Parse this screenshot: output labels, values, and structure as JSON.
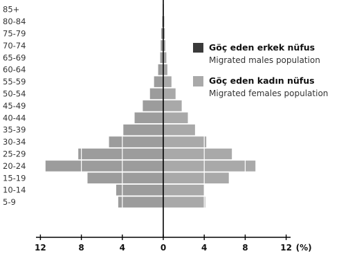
{
  "chart_data": {
    "type": "bar",
    "orientation": "horizontal",
    "categories": [
      "85+",
      "80-84",
      "75-79",
      "70-74",
      "65-69",
      "60-64",
      "55-59",
      "50-54",
      "45-49",
      "40-44",
      "35-39",
      "30-34",
      "25-29",
      "20-24",
      "15-19",
      "10-14",
      "5-9"
    ],
    "series": [
      {
        "name": "Göç eden erkek nüfus",
        "name_sub": "Migrated males population",
        "side": "left",
        "color": "#9c9c9c",
        "values": [
          0.05,
          0.1,
          0.2,
          0.25,
          0.3,
          0.5,
          0.9,
          1.3,
          2.0,
          2.8,
          3.9,
          5.3,
          8.3,
          11.5,
          7.4,
          4.6,
          4.4
        ]
      },
      {
        "name": "Göç eden kadın nüfus",
        "name_sub": "Migrated females population",
        "side": "right",
        "color": "#a9a9a9",
        "values": [
          0.05,
          0.1,
          0.15,
          0.2,
          0.3,
          0.4,
          0.8,
          1.2,
          1.8,
          2.4,
          3.1,
          4.2,
          6.7,
          9.0,
          6.4,
          4.0,
          4.1
        ]
      }
    ],
    "x_ticks": [
      "12",
      "8",
      "4",
      "0",
      "4",
      "8",
      "12"
    ],
    "x_unit": "(%)",
    "xlim": [
      -12,
      12
    ],
    "legend_position": "right",
    "grid": false
  }
}
